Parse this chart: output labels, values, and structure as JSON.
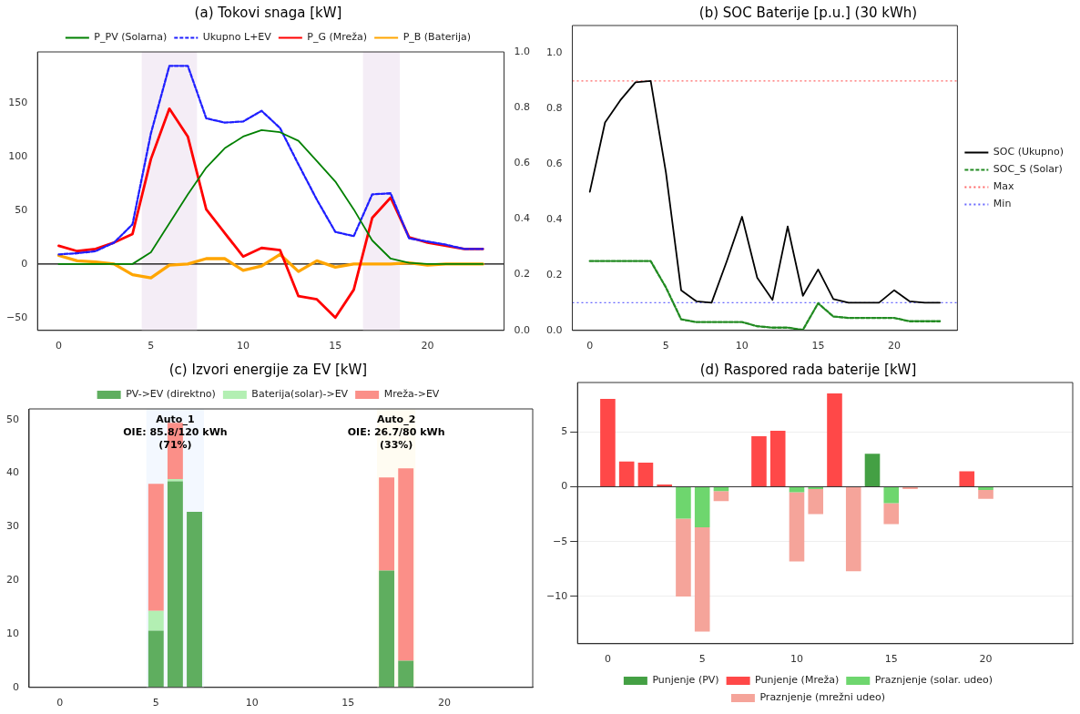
{
  "chart_data": [
    {
      "type": "line",
      "title": "(a) Tokovi snaga [kW]",
      "x": [
        0,
        1,
        2,
        3,
        4,
        5,
        6,
        7,
        8,
        9,
        10,
        11,
        12,
        13,
        14,
        15,
        16,
        17,
        18,
        19,
        20,
        21,
        22,
        23
      ],
      "series": [
        {
          "name": "P_PV (Solarna)",
          "color": "#008000",
          "values": [
            0,
            0,
            0,
            0,
            0,
            11,
            38,
            65,
            90,
            108,
            119,
            125,
            123,
            115,
            96,
            77,
            51,
            22,
            5,
            1,
            0,
            0,
            0,
            0
          ]
        },
        {
          "name": "Ukupno L+EV",
          "color": "#1f1fff",
          "line_style": "dashed",
          "values": [
            9,
            10,
            12,
            20,
            37,
            122,
            185,
            185,
            136,
            132,
            133,
            143,
            127,
            93,
            60,
            30,
            26,
            65,
            66,
            24,
            21,
            18,
            14,
            14
          ]
        },
        {
          "name": "P_G (Mreža)",
          "color": "#ff0000",
          "values": [
            17,
            12,
            14,
            20,
            28,
            98,
            145,
            119,
            51,
            29,
            7,
            15,
            13,
            -30,
            -33,
            -50,
            -24,
            43,
            62,
            25,
            20,
            17,
            14,
            14
          ]
        },
        {
          "name": "P_B (Baterija)",
          "color": "#ffa500",
          "values": [
            8,
            3,
            2,
            0,
            -10,
            -13,
            -1,
            0,
            5,
            5,
            -6,
            -2,
            9,
            -7,
            3,
            -3,
            0,
            0,
            0,
            1,
            -1,
            0,
            0,
            0
          ]
        }
      ],
      "xlim": [
        -1.15,
        24.15
      ],
      "xticks": [
        0,
        5,
        10,
        15,
        20
      ],
      "ylim": [
        -62,
        198
      ],
      "yticks": [
        {
          "value": -50,
          "label": "−50"
        },
        0,
        50,
        100,
        150
      ],
      "y2lim": [
        0,
        1
      ],
      "y2ticks": [
        {
          "value": 0,
          "label": "0.0"
        },
        {
          "value": 0.2,
          "label": "0.2"
        },
        {
          "value": 0.4,
          "label": "0.4"
        },
        {
          "value": 0.6,
          "label": "0.6"
        },
        {
          "value": 0.8,
          "label": "0.8"
        },
        {
          "value": 1,
          "label": "1.0"
        }
      ],
      "bands": [
        {
          "axis": "x",
          "from": 4.5,
          "to": 7.5,
          "color": "#f4edf6"
        },
        {
          "axis": "x",
          "from": 16.5,
          "to": 18.5,
          "color": "#f4edf6"
        }
      ],
      "ref_lines": [
        {
          "axis": "y",
          "value": 0,
          "color": "#000000"
        }
      ],
      "legend": "top"
    },
    {
      "type": "line",
      "title": "(b) SOC Baterije [p.u.] (30 kWh)",
      "x": [
        0,
        1,
        2,
        3,
        4,
        5,
        6,
        7,
        8,
        9,
        10,
        11,
        12,
        13,
        14,
        15,
        16,
        17,
        18,
        19,
        20,
        21,
        22,
        23
      ],
      "series": [
        {
          "name": "SOC (Ukupno)",
          "color": "#000000",
          "values": [
            0.5,
            0.75,
            0.83,
            0.895,
            0.9,
            0.57,
            0.145,
            0.105,
            0.1,
            0.25,
            0.41,
            0.19,
            0.11,
            0.375,
            0.125,
            0.22,
            0.113,
            0.1,
            0.1,
            0.1,
            0.145,
            0.105,
            0.1,
            0.1
          ]
        },
        {
          "name": "SOC_S (Solar)",
          "color": "#228b22",
          "line_style": "dashed",
          "values": [
            0.25,
            0.25,
            0.25,
            0.25,
            0.25,
            0.155,
            0.04,
            0.03,
            0.03,
            0.03,
            0.03,
            0.015,
            0.01,
            0.01,
            0.002,
            0.098,
            0.05,
            0.045,
            0.045,
            0.045,
            0.045,
            0.033,
            0.033,
            0.033
          ]
        }
      ],
      "xlim": [
        -1.15,
        24.15
      ],
      "xticks": [
        0,
        5,
        10,
        15,
        20
      ],
      "ylim": [
        0,
        1.1
      ],
      "yticks": [
        {
          "value": 0,
          "label": "0.0"
        },
        {
          "value": 0.2,
          "label": "0.2"
        },
        {
          "value": 0.4,
          "label": "0.4"
        },
        {
          "value": 0.6,
          "label": "0.6"
        },
        {
          "value": 0.8,
          "label": "0.8"
        },
        {
          "value": 1,
          "label": "1.0"
        }
      ],
      "ref_lines": [
        {
          "axis": "y",
          "value": 0.9,
          "label": "Max",
          "color": "#ff6666",
          "line_style": "dotted"
        },
        {
          "axis": "y",
          "value": 0.1,
          "label": "Min",
          "color": "#6666ff",
          "line_style": "dotted"
        }
      ],
      "legend": "right"
    },
    {
      "type": "bar",
      "stacked": true,
      "title": "(c) Izvori energije za EV [kW]",
      "x": [
        5,
        6,
        7,
        17,
        18
      ],
      "series": [
        {
          "name": "PV->EV (direktno)",
          "color": "#5fae5f",
          "values": [
            10.6,
            38.5,
            32.8,
            21.8,
            5.0
          ]
        },
        {
          "name": "Baterija(solar)->EV",
          "color": "#b3efb3",
          "values": [
            3.7,
            0.4,
            null,
            null,
            null
          ]
        },
        {
          "name": "Mreža->EV",
          "color": "#fb8f88",
          "values": [
            23.7,
            10.5,
            null,
            17.4,
            35.9
          ]
        }
      ],
      "xlim": [
        -1.6,
        24.6
      ],
      "xticks": [
        0,
        5,
        10,
        15,
        20
      ],
      "ylim": [
        0,
        52
      ],
      "yticks": [
        0,
        10,
        20,
        30,
        40,
        50
      ],
      "bands": [
        {
          "axis": "x",
          "from": 4.5,
          "to": 7.5,
          "color": "#f3f8ff",
          "label": "Auto_1\nOIE: 85.8/120 kWh\n(71%)"
        },
        {
          "axis": "x",
          "from": 16.5,
          "to": 18.5,
          "color": "#fffcf2",
          "label": "Auto_2\nOIE: 26.7/80 kWh\n(33%)"
        }
      ],
      "legend": "top"
    },
    {
      "type": "bar",
      "stacked": true,
      "title": "(d) Raspored rada baterije [kW]",
      "x": [
        0,
        1,
        2,
        3,
        4,
        5,
        6,
        7,
        8,
        9,
        10,
        11,
        12,
        13,
        14,
        15,
        16,
        17,
        18,
        19,
        20
      ],
      "series": [
        {
          "name": "Punjenje (PV)",
          "color": "#44a044",
          "values": [
            null,
            null,
            null,
            null,
            null,
            null,
            null,
            null,
            null,
            null,
            null,
            null,
            null,
            null,
            3.0,
            null,
            null,
            null,
            null,
            null,
            null
          ]
        },
        {
          "name": "Punjenje (Mreža)",
          "color": "#ff4848",
          "values": [
            8.0,
            2.3,
            2.2,
            0.2,
            null,
            null,
            null,
            null,
            4.6,
            5.1,
            null,
            null,
            8.5,
            null,
            null,
            null,
            null,
            null,
            null,
            1.4,
            null
          ]
        },
        {
          "name": "Praznjenje (solar. udeo)",
          "color": "#6ed66e",
          "values": [
            null,
            null,
            null,
            null,
            -2.9,
            -3.7,
            -0.4,
            null,
            null,
            null,
            -0.5,
            -0.2,
            null,
            null,
            null,
            -1.5,
            null,
            null,
            null,
            null,
            -0.3
          ]
        },
        {
          "name": "Praznjenje (mrežni udeo)",
          "color": "#f5a49a",
          "values": [
            null,
            null,
            null,
            null,
            -7.1,
            -9.5,
            -0.9,
            null,
            null,
            null,
            -6.3,
            -2.3,
            null,
            -7.7,
            null,
            -1.9,
            -0.2,
            null,
            null,
            null,
            -0.8
          ]
        }
      ],
      "xlim": [
        -1.6,
        24.6
      ],
      "xticks": [
        0,
        5,
        10,
        15,
        20
      ],
      "ylim": [
        -14.3,
        9.5
      ],
      "yticks": [
        {
          "value": -10,
          "label": "−10"
        },
        {
          "value": -5,
          "label": "−5"
        },
        0,
        5
      ],
      "ref_lines": [
        {
          "axis": "y",
          "value": 0,
          "color": "#333333"
        }
      ],
      "grid": "y",
      "legend": "bottom"
    }
  ]
}
